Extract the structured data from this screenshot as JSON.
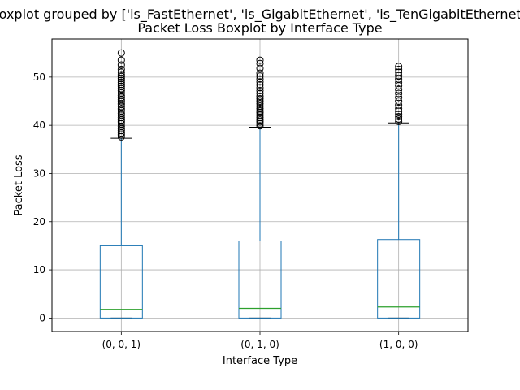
{
  "chart_data": {
    "type": "boxplot",
    "suptitle": "Boxplot grouped by ['is_FastEthernet', 'is_GigabitEthernet', 'is_TenGigabitEthernet']",
    "title": "Packet Loss Boxplot by Interface Type",
    "xlabel": "Interface Type",
    "ylabel": "Packet Loss",
    "ylim": [
      -2.8,
      57.9
    ],
    "yticks": [
      0,
      10,
      20,
      30,
      40,
      50
    ],
    "grid": true,
    "box_color": "#1f77b4",
    "median_color": "#2ca02c",
    "categories": [
      "(0, 0, 1)",
      "(0, 1, 0)",
      "(1, 0, 0)"
    ],
    "boxes": [
      {
        "label": "(0, 0, 1)",
        "whisker_low": 0,
        "q1": 0,
        "median": 1.8,
        "q3": 15.0,
        "whisker_high": 37.3,
        "outliers": [
          37.6,
          38.0,
          38.4,
          38.9,
          39.3,
          39.8,
          40.3,
          40.7,
          41.1,
          41.6,
          42.1,
          42.5,
          43.0,
          43.4,
          43.9,
          44.4,
          44.9,
          45.3,
          45.8,
          46.2,
          46.7,
          47.2,
          47.6,
          48.1,
          48.5,
          48.9,
          49.3,
          49.7,
          50.1,
          50.5,
          51.0,
          51.6,
          52.5,
          53.5,
          55.0
        ]
      },
      {
        "label": "(0, 1, 0)",
        "whisker_low": 0,
        "q1": 0,
        "median": 2.0,
        "q3": 16.0,
        "whisker_high": 39.6,
        "outliers": [
          39.9,
          40.3,
          40.7,
          41.1,
          41.6,
          42.1,
          42.6,
          43.0,
          43.5,
          44.0,
          44.5,
          45.0,
          45.5,
          46.0,
          46.6,
          47.2,
          47.8,
          48.4,
          49.0,
          49.6,
          50.2,
          50.8,
          51.8,
          52.8,
          53.5
        ]
      },
      {
        "label": "(1, 0, 0)",
        "whisker_low": 0,
        "q1": 0,
        "median": 2.3,
        "q3": 16.3,
        "whisker_high": 40.5,
        "outliers": [
          40.8,
          41.3,
          41.8,
          42.3,
          42.9,
          43.5,
          44.2,
          45.0,
          45.8,
          46.6,
          47.4,
          48.2,
          48.9,
          49.6,
          50.3,
          51.0,
          51.6,
          52.2
        ]
      }
    ]
  }
}
